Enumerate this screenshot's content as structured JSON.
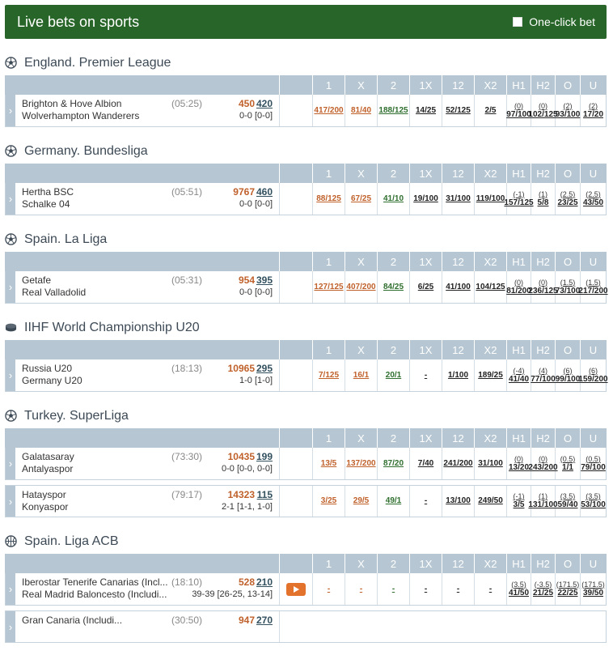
{
  "header": {
    "title": "Live bets on sports",
    "one_click_label": "One-click bet"
  },
  "columns": [
    "1",
    "X",
    "2",
    "1X",
    "12",
    "X2",
    "H1",
    "H2",
    "O",
    "U"
  ],
  "leagues": [
    {
      "name": "England. Premier League",
      "icon": "soccer-ball-icon",
      "events": [
        {
          "team1": "Brighton & Hove Albion",
          "team2": "Wolverhampton Wanderers",
          "time": "(05:25)",
          "id1": "450",
          "id2": "420",
          "score": "0-0 [0-0]",
          "odds": [
            {
              "v": "417/200"
            },
            {
              "v": "81/40"
            },
            {
              "v": "188/125"
            },
            {
              "v": "14/25"
            },
            {
              "v": "52/125"
            },
            {
              "v": "2/5"
            },
            {
              "p": "(0)",
              "v": "97/100"
            },
            {
              "p": "(0)",
              "v": "102/125"
            },
            {
              "p": "(2)",
              "v": "93/100"
            },
            {
              "p": "(2)",
              "v": "17/20"
            }
          ]
        }
      ]
    },
    {
      "name": "Germany. Bundesliga",
      "icon": "soccer-ball-icon",
      "events": [
        {
          "team1": "Hertha BSC",
          "team2": "Schalke 04",
          "time": "(05:51)",
          "id1": "9767",
          "id2": "460",
          "score": "0-0 [0-0]",
          "odds": [
            {
              "v": "88/125"
            },
            {
              "v": "67/25"
            },
            {
              "v": "41/10"
            },
            {
              "v": "19/100"
            },
            {
              "v": "31/100"
            },
            {
              "v": "119/100"
            },
            {
              "p": "(-1)",
              "v": "157/125"
            },
            {
              "p": "(1)",
              "v": "5/8"
            },
            {
              "p": "(2.5)",
              "v": "23/25"
            },
            {
              "p": "(2.5)",
              "v": "43/50"
            }
          ]
        }
      ]
    },
    {
      "name": "Spain. La Liga",
      "icon": "soccer-ball-icon",
      "events": [
        {
          "team1": "Getafe",
          "team2": "Real Valladolid",
          "time": "(05:31)",
          "id1": "954",
          "id2": "395",
          "score": "0-0 [0-0]",
          "odds": [
            {
              "v": "127/125"
            },
            {
              "v": "407/200"
            },
            {
              "v": "84/25"
            },
            {
              "v": "6/25"
            },
            {
              "v": "41/100"
            },
            {
              "v": "104/125"
            },
            {
              "p": "(0)",
              "v": "81/200"
            },
            {
              "p": "(0)",
              "v": "236/125"
            },
            {
              "p": "(1.5)",
              "v": "73/100"
            },
            {
              "p": "(1.5)",
              "v": "217/200"
            }
          ]
        }
      ]
    },
    {
      "name": "IIHF World Championship U20",
      "icon": "hockey-puck-icon",
      "events": [
        {
          "team1": "Russia U20",
          "team2": "Germany U20",
          "time": "(18:13)",
          "id1": "10965",
          "id2": "295",
          "score": "1-0 [1-0]",
          "odds": [
            {
              "v": "7/125"
            },
            {
              "v": "16/1"
            },
            {
              "v": "20/1"
            },
            {
              "v": "-"
            },
            {
              "v": "1/100"
            },
            {
              "v": "189/25"
            },
            {
              "p": "(-4)",
              "v": "41/40"
            },
            {
              "p": "(4)",
              "v": "77/100"
            },
            {
              "p": "(6)",
              "v": "99/100"
            },
            {
              "p": "(6)",
              "v": "159/200"
            }
          ]
        }
      ]
    },
    {
      "name": "Turkey. SuperLiga",
      "icon": "soccer-ball-icon",
      "events": [
        {
          "team1": "Galatasaray",
          "team2": "Antalyaspor",
          "time": "(73:30)",
          "id1": "10435",
          "id2": "199",
          "score": "0-0 [0-0, 0-0]",
          "odds": [
            {
              "v": "13/5"
            },
            {
              "v": "137/200"
            },
            {
              "v": "87/20"
            },
            {
              "v": "7/40"
            },
            {
              "v": "241/200"
            },
            {
              "v": "31/100"
            },
            {
              "p": "(0)",
              "v": "13/20"
            },
            {
              "p": "(0)",
              "v": "243/200"
            },
            {
              "p": "(0.5)",
              "v": "1/1"
            },
            {
              "p": "(0.5)",
              "v": "79/100"
            }
          ]
        },
        {
          "team1": "Hatayspor",
          "team2": "Konyaspor",
          "time": "(79:17)",
          "id1": "14323",
          "id2": "115",
          "score": "2-1 [1-1, 1-0]",
          "odds": [
            {
              "v": "3/25"
            },
            {
              "v": "29/5"
            },
            {
              "v": "49/1"
            },
            {
              "v": "-"
            },
            {
              "v": "13/100"
            },
            {
              "v": "249/50"
            },
            {
              "p": "(-1)",
              "v": "3/5"
            },
            {
              "p": "(1)",
              "v": "131/100"
            },
            {
              "p": "(3.5)",
              "v": "59/40"
            },
            {
              "p": "(3.5)",
              "v": "53/100"
            }
          ]
        }
      ]
    },
    {
      "name": "Spain. Liga ACB",
      "icon": "basketball-icon",
      "events": [
        {
          "team1": "Iberostar Tenerife Canarias (Incl...",
          "team2": "Real Madrid Baloncesto (Includi...",
          "time": "(18:10)",
          "id1": "528",
          "id2": "210",
          "score": "39-39 [26-25, 13-14]",
          "video": true,
          "odds": [
            {
              "v": "-"
            },
            {
              "v": "-"
            },
            {
              "v": "-"
            },
            {
              "v": "-"
            },
            {
              "v": "-"
            },
            {
              "v": "-"
            },
            {
              "p": "(3.5)",
              "v": "41/50"
            },
            {
              "p": "(-3.5)",
              "v": "21/25"
            },
            {
              "p": "(171.5)",
              "v": "22/25"
            },
            {
              "p": "(171.5)",
              "v": "39/50"
            }
          ]
        }
      ]
    }
  ],
  "cut_row": {
    "team1": "Gran Canaria (Includi...",
    "time": "(30:50)",
    "id1": "947",
    "id2": "270"
  }
}
